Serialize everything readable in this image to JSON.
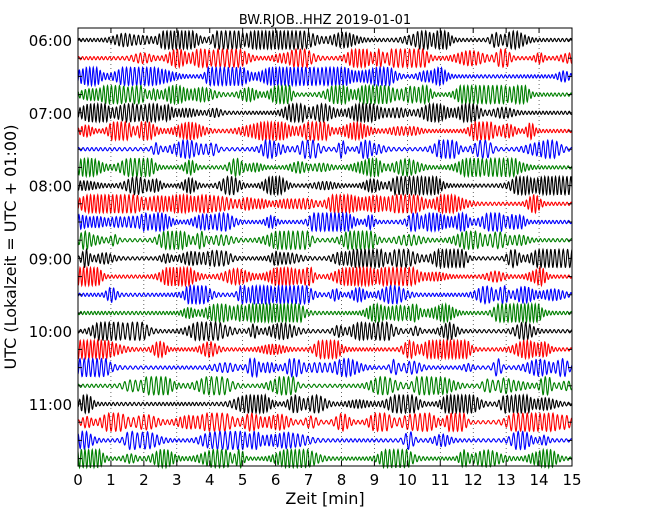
{
  "chart_data": {
    "type": "line",
    "subtype": "dayplot-seismogram",
    "title": "BW.RJOB..HHZ 2019-01-01",
    "xlabel": "Zeit  [min]",
    "ylabel": "UTC (Lokalzeit = UTC + 01:00)",
    "xlim": [
      0,
      15
    ],
    "x_ticks": [
      "0",
      "1",
      "2",
      "3",
      "4",
      "5",
      "6",
      "7",
      "8",
      "9",
      "10",
      "11",
      "12",
      "13",
      "14",
      "15"
    ],
    "y_tick_labels": [
      "06:00",
      "07:00",
      "08:00",
      "09:00",
      "10:00",
      "11:00"
    ],
    "trace_start_times": [
      "06:00",
      "06:15",
      "06:30",
      "06:45",
      "07:00",
      "07:15",
      "07:30",
      "07:45",
      "08:00",
      "08:15",
      "08:30",
      "08:45",
      "09:00",
      "09:15",
      "09:30",
      "09:45",
      "10:00",
      "10:15",
      "10:30",
      "10:45",
      "11:00",
      "11:15",
      "11:30",
      "11:45"
    ],
    "color_cycle": [
      "#000000",
      "#ff0000",
      "#0000ff",
      "#008000"
    ],
    "grid": "vertical-dotted",
    "interval_minutes": 15
  }
}
